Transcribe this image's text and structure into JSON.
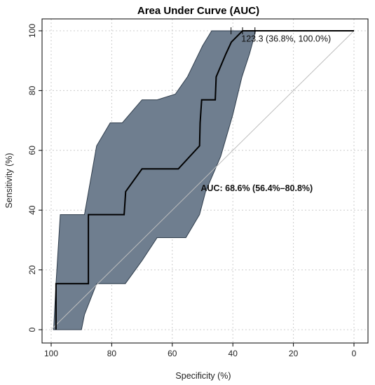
{
  "chart_data": {
    "type": "line",
    "title": "Area Under Curve (AUC)",
    "xlabel": "Specificity (%)",
    "ylabel": "Sensitivity (%)",
    "x_reversed": true,
    "xlim": [
      100,
      0
    ],
    "ylim": [
      0,
      100
    ],
    "xticks": [
      100,
      80,
      60,
      40,
      20,
      0
    ],
    "yticks": [
      0,
      20,
      40,
      60,
      80,
      100
    ],
    "grid": true,
    "reference_line": {
      "from": [
        100,
        0
      ],
      "to": [
        0,
        100
      ]
    },
    "series": [
      {
        "x": [
          98.4,
          98.4,
          87.7,
          87.7,
          75.9,
          75.4,
          70.0,
          58.0,
          51.0,
          50.8,
          50.3,
          45.8,
          45.5,
          42.3,
          40.5,
          36.8,
          0
        ],
        "y": [
          0,
          15.4,
          15.4,
          38.5,
          38.5,
          46.2,
          53.8,
          53.8,
          61.5,
          69.2,
          76.9,
          76.9,
          84.6,
          92.3,
          96.2,
          100,
          100
        ]
      }
    ],
    "confidence_band": {
      "upper": {
        "x": [
          99.2,
          98.4,
          97.0,
          94.0,
          89.0,
          85.0,
          80.5,
          76.5,
          70.0,
          65.0,
          59.0,
          55.0,
          50.0,
          47.0,
          42.5,
          40.0,
          0
        ],
        "y": [
          0,
          15.4,
          38.5,
          38.5,
          38.5,
          61.5,
          69.2,
          69.2,
          76.9,
          76.9,
          78.8,
          84.6,
          95.0,
          100,
          100,
          100,
          100
        ]
      },
      "lower": {
        "x": [
          0,
          32.5,
          33.5,
          34.5,
          37.0,
          40.0,
          44.0,
          49.0,
          51.0,
          55.5,
          65.0,
          70.0,
          75.5,
          85.0,
          89.0,
          90.0,
          99.2
        ],
        "y": [
          100,
          100,
          96.0,
          92.3,
          84.6,
          72.0,
          58.0,
          46.2,
          38.5,
          30.8,
          30.8,
          23.1,
          15.4,
          15.4,
          5.0,
          0,
          0
        ]
      }
    },
    "tick_marks_top": [
      40.6,
      36.8,
      32.7
    ],
    "annotations": [
      {
        "text": "123.3 (36.8%, 100.0%)",
        "x": 37.2,
        "y": 97.3,
        "bold": false
      },
      {
        "text": "AUC: 68.6% (56.4%–80.8%)",
        "x": 50.6,
        "y": 47.3,
        "bold": true
      }
    ],
    "colors": {
      "band_fill": "#6f7e8f",
      "band_stroke": "#2f3d4c",
      "line": "#000000",
      "grid": "#cccccc",
      "reference": "#bdbdbd"
    }
  }
}
